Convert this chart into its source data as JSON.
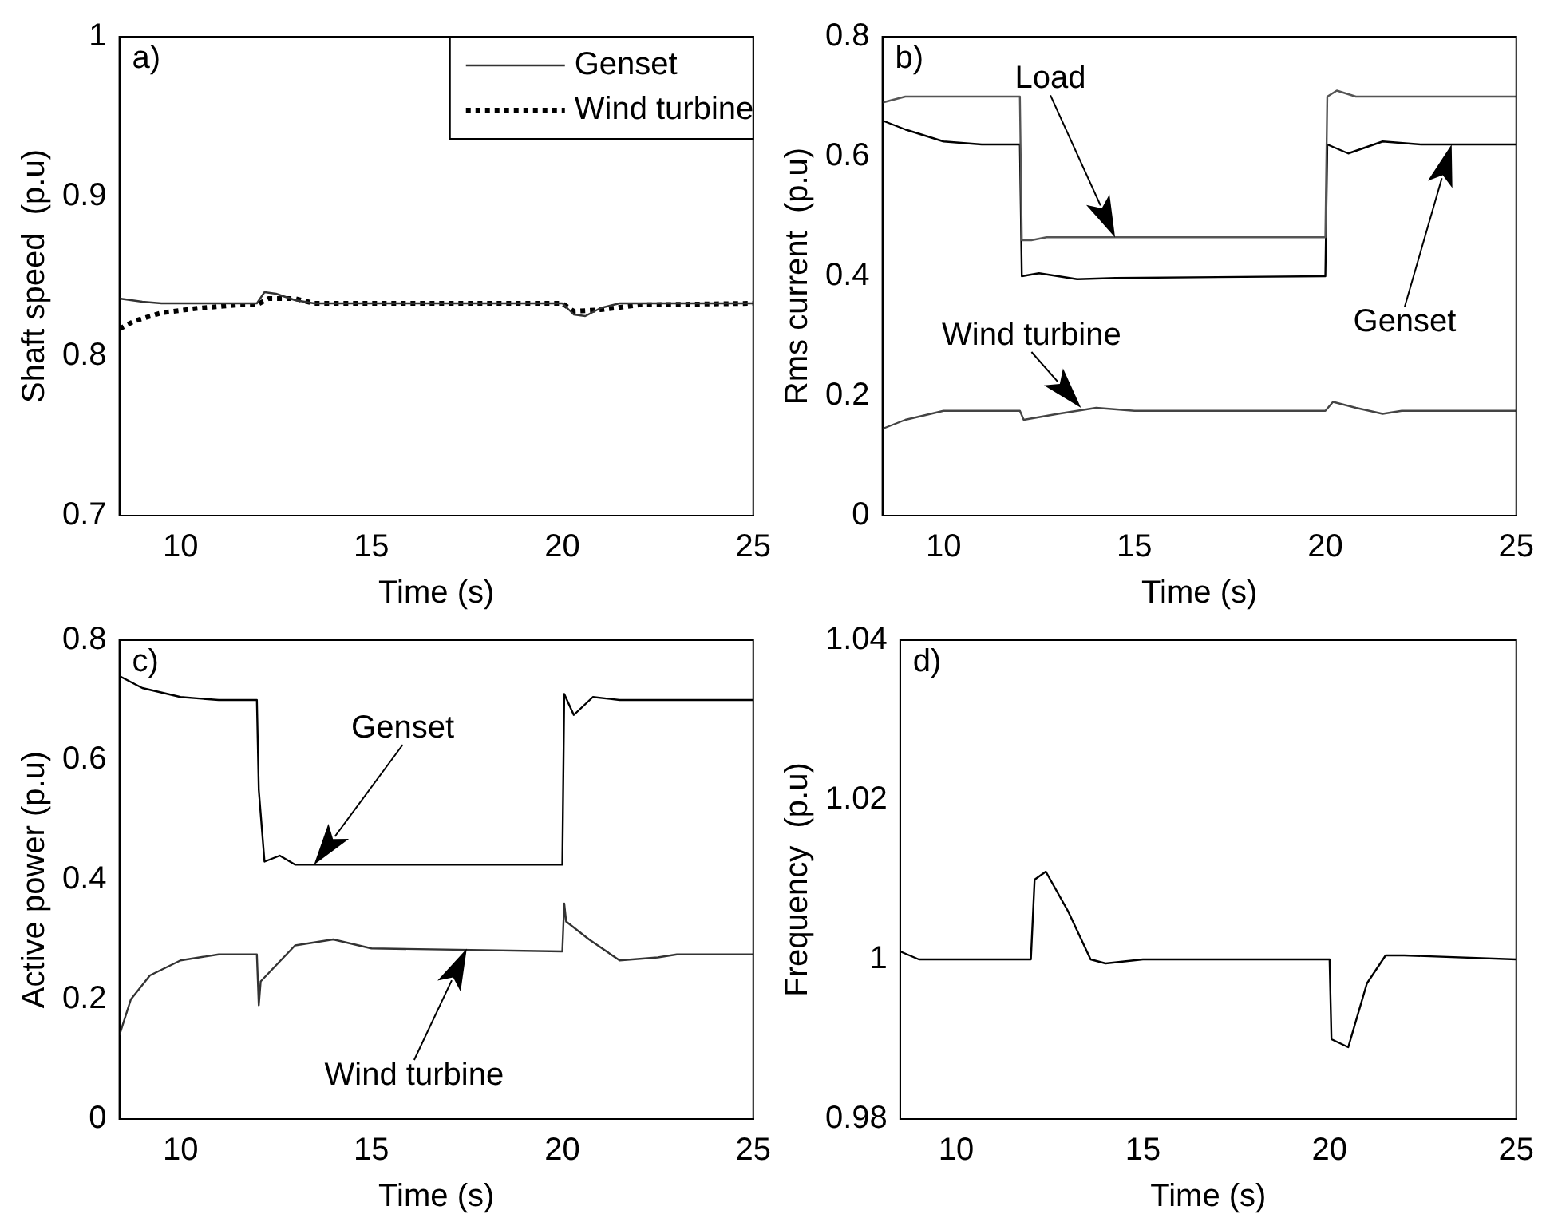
{
  "chart_data": [
    {
      "type": "line",
      "xlabel": "Time (s)",
      "ylabel": "Shaft speed  (p.u)",
      "xlim": [
        8.4,
        25
      ],
      "xticks": [
        10,
        15,
        20,
        25
      ],
      "ylim": [
        0.7,
        1
      ],
      "yticks": [
        0.7,
        0.8,
        0.9,
        1
      ],
      "legend": "top right",
      "grid": false,
      "annotations": [
        "a)"
      ],
      "series": [
        {
          "name": "Genset",
          "color": "#333333",
          "line_style": "solid",
          "x": [
            8.4,
            9,
            9.5,
            12,
            12.2,
            12.5,
            13,
            13.5,
            20,
            20.3,
            20.6,
            21,
            21.5,
            25
          ],
          "values": [
            0.836,
            0.834,
            0.833,
            0.833,
            0.84,
            0.839,
            0.835,
            0.833,
            0.833,
            0.826,
            0.825,
            0.83,
            0.833,
            0.833
          ]
        },
        {
          "name": "Wind turbine",
          "color": "#000000",
          "line_style": "dotted",
          "x": [
            8.4,
            8.8,
            9.5,
            10.5,
            11.5,
            12,
            12.3,
            13,
            13.5,
            20,
            20.3,
            21,
            22,
            25
          ],
          "values": [
            0.817,
            0.822,
            0.827,
            0.83,
            0.832,
            0.832,
            0.836,
            0.836,
            0.833,
            0.833,
            0.828,
            0.829,
            0.832,
            0.833
          ]
        }
      ]
    },
    {
      "type": "line",
      "xlabel": "Time (s)",
      "ylabel": "Rms current  (p.u)",
      "xlim": [
        8.4,
        25
      ],
      "xticks": [
        10,
        15,
        20,
        25
      ],
      "ylim": [
        0,
        0.8
      ],
      "yticks": [
        0,
        0.2,
        0.4,
        0.6,
        0.8
      ],
      "grid": false,
      "annotations": [
        "b)",
        "Load",
        "Genset",
        {
          "text": "Wind turbine",
          "x": 13.6,
          "y": 0.18
        }
      ],
      "series": [
        {
          "color": "#555555",
          "x": [
            8.4,
            9,
            12,
            12.05,
            12.3,
            12.7,
            20,
            20.05,
            20.3,
            20.8,
            25
          ],
          "values": [
            0.69,
            0.7,
            0.7,
            0.46,
            0.46,
            0.465,
            0.465,
            0.7,
            0.71,
            0.7,
            0.7
          ]
        },
        {
          "color": "#000000",
          "x": [
            8.4,
            9,
            10,
            11,
            12,
            12.05,
            12.5,
            13.5,
            14.5,
            20,
            20.05,
            20.6,
            21.5,
            22.5,
            25
          ],
          "values": [
            0.66,
            0.645,
            0.625,
            0.62,
            0.62,
            0.4,
            0.405,
            0.395,
            0.397,
            0.4,
            0.62,
            0.605,
            0.625,
            0.62,
            0.62
          ]
        },
        {
          "color": "#444444",
          "x": [
            8.4,
            9,
            10,
            12,
            12.1,
            13,
            14,
            15,
            20,
            20.2,
            20.8,
            21.5,
            22,
            25
          ],
          "values": [
            0.145,
            0.16,
            0.175,
            0.175,
            0.16,
            0.17,
            0.18,
            0.175,
            0.175,
            0.19,
            0.18,
            0.17,
            0.175,
            0.175
          ]
        }
      ]
    },
    {
      "type": "line",
      "xlabel": "Time (s)",
      "ylabel": "Active power (p.u)",
      "xlim": [
        8.4,
        25
      ],
      "xticks": [
        10,
        15,
        20,
        25
      ],
      "ylim": [
        0,
        0.8
      ],
      "yticks": [
        0,
        0.2,
        0.4,
        0.6,
        0.8
      ],
      "grid": false,
      "annotations": [
        "c)",
        "Genset",
        "Wind turbine"
      ],
      "series": [
        {
          "color": "#000000",
          "x": [
            8.4,
            9,
            10,
            11,
            12,
            12.05,
            12.2,
            12.6,
            13,
            14,
            20,
            20.05,
            20.3,
            20.8,
            21.5,
            25
          ],
          "values": [
            0.74,
            0.72,
            0.705,
            0.7,
            0.7,
            0.55,
            0.43,
            0.44,
            0.425,
            0.425,
            0.425,
            0.71,
            0.675,
            0.705,
            0.7,
            0.7
          ]
        },
        {
          "color": "#333333",
          "x": [
            8.4,
            8.7,
            9.2,
            10,
            11,
            12,
            12.05,
            12.1,
            13,
            14,
            15,
            20,
            20.05,
            20.1,
            20.7,
            21.5,
            22.5,
            23,
            25
          ],
          "values": [
            0.14,
            0.2,
            0.24,
            0.265,
            0.275,
            0.275,
            0.19,
            0.23,
            0.29,
            0.3,
            0.285,
            0.28,
            0.36,
            0.33,
            0.3,
            0.265,
            0.27,
            0.275,
            0.275
          ]
        }
      ]
    },
    {
      "type": "line",
      "xlabel": "Time (s)",
      "ylabel": "Frequency  (p.u)",
      "xlim": [
        8.5,
        25
      ],
      "xticks": [
        10,
        15,
        20,
        25
      ],
      "ylim": [
        0.98,
        1.04
      ],
      "yticks": [
        0.98,
        1,
        1.02,
        1.04
      ],
      "grid": false,
      "annotations": [
        "d)"
      ],
      "series": [
        {
          "color": "#000000",
          "x": [
            8.5,
            9,
            12,
            12.1,
            12.4,
            13,
            13.6,
            14,
            15,
            20,
            20.05,
            20.5,
            21,
            21.5,
            22,
            25
          ],
          "values": [
            1.001,
            1,
            1,
            1.01,
            1.011,
            1.006,
            1,
            0.9995,
            1,
            1,
            0.99,
            0.989,
            0.997,
            1.0005,
            1.0005,
            1
          ]
        }
      ]
    }
  ]
}
